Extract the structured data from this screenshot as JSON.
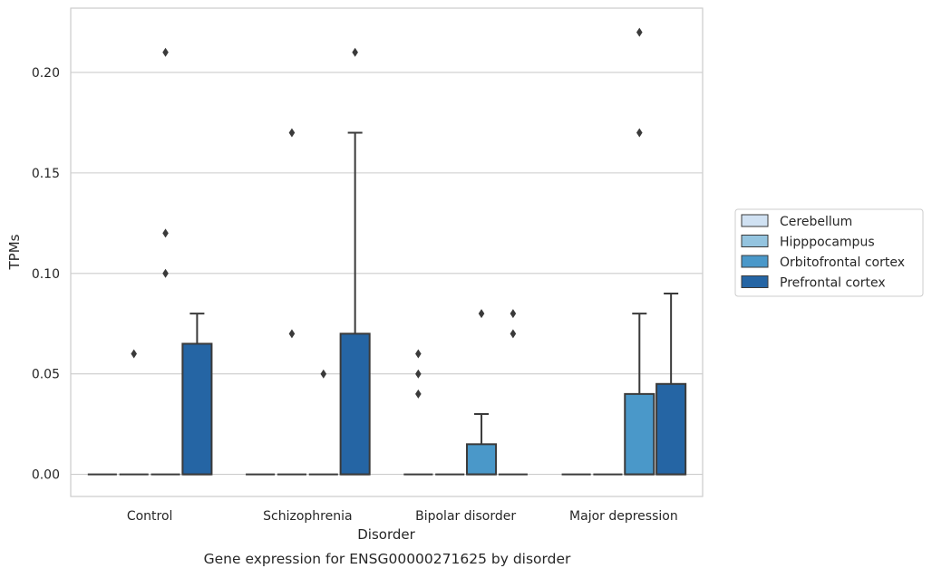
{
  "chart_data": {
    "type": "box",
    "title": "",
    "caption": "Gene expression for ENSG00000271625 by disorder",
    "xlabel": "Disorder",
    "ylabel": "TPMs",
    "ylim": [
      -0.011,
      0.232
    ],
    "yticks": [
      0.0,
      0.05,
      0.1,
      0.15,
      0.2
    ],
    "ytick_labels": [
      "0.00",
      "0.05",
      "0.10",
      "0.15",
      "0.20"
    ],
    "grid": "horizontal",
    "legend_position": "right",
    "categories": [
      "Control",
      "Schizophrenia",
      "Bipolar disorder",
      "Major depression"
    ],
    "series": [
      {
        "name": "Cerebellum",
        "color": "#d0e1f2",
        "boxes": [
          {
            "q1": 0,
            "median": 0,
            "q3": 0,
            "whisker_low": 0,
            "whisker_high": 0,
            "outliers": []
          },
          {
            "q1": 0,
            "median": 0,
            "q3": 0,
            "whisker_low": 0,
            "whisker_high": 0,
            "outliers": []
          },
          {
            "q1": 0,
            "median": 0,
            "q3": 0,
            "whisker_low": 0,
            "whisker_high": 0,
            "outliers": [
              0.04,
              0.05,
              0.06
            ]
          },
          {
            "q1": 0,
            "median": 0,
            "q3": 0,
            "whisker_low": 0,
            "whisker_high": 0,
            "outliers": []
          }
        ]
      },
      {
        "name": "Hipppocampus",
        "color": "#94c4df",
        "boxes": [
          {
            "q1": 0,
            "median": 0,
            "q3": 0,
            "whisker_low": 0,
            "whisker_high": 0,
            "outliers": [
              0.06
            ]
          },
          {
            "q1": 0,
            "median": 0,
            "q3": 0,
            "whisker_low": 0,
            "whisker_high": 0,
            "outliers": [
              0.07,
              0.17
            ]
          },
          {
            "q1": 0,
            "median": 0,
            "q3": 0,
            "whisker_low": 0,
            "whisker_high": 0,
            "outliers": []
          },
          {
            "q1": 0,
            "median": 0,
            "q3": 0,
            "whisker_low": 0,
            "whisker_high": 0,
            "outliers": []
          }
        ]
      },
      {
        "name": "Orbitofrontal cortex",
        "color": "#4a98c9",
        "boxes": [
          {
            "q1": 0,
            "median": 0,
            "q3": 0,
            "whisker_low": 0,
            "whisker_high": 0,
            "outliers": [
              0.1,
              0.12,
              0.21
            ]
          },
          {
            "q1": 0,
            "median": 0,
            "q3": 0,
            "whisker_low": 0,
            "whisker_high": 0,
            "outliers": [
              0.05
            ]
          },
          {
            "q1": 0,
            "median": 0,
            "q3": 0.015,
            "whisker_low": 0,
            "whisker_high": 0.03,
            "outliers": [
              0.08
            ]
          },
          {
            "q1": 0,
            "median": 0,
            "q3": 0.04,
            "whisker_low": 0,
            "whisker_high": 0.08,
            "outliers": [
              0.17,
              0.22
            ]
          }
        ]
      },
      {
        "name": "Prefrontal cortex",
        "color": "#2565a4",
        "boxes": [
          {
            "q1": 0,
            "median": 0,
            "q3": 0.065,
            "whisker_low": 0,
            "whisker_high": 0.08,
            "outliers": []
          },
          {
            "q1": 0,
            "median": 0,
            "q3": 0.07,
            "whisker_low": 0,
            "whisker_high": 0.17,
            "outliers": [
              0.21
            ]
          },
          {
            "q1": 0,
            "median": 0,
            "q3": 0,
            "whisker_low": 0,
            "whisker_high": 0,
            "outliers": [
              0.07,
              0.08
            ]
          },
          {
            "q1": 0,
            "median": 0,
            "q3": 0.045,
            "whisker_low": 0,
            "whisker_high": 0.09,
            "outliers": []
          }
        ]
      }
    ]
  }
}
